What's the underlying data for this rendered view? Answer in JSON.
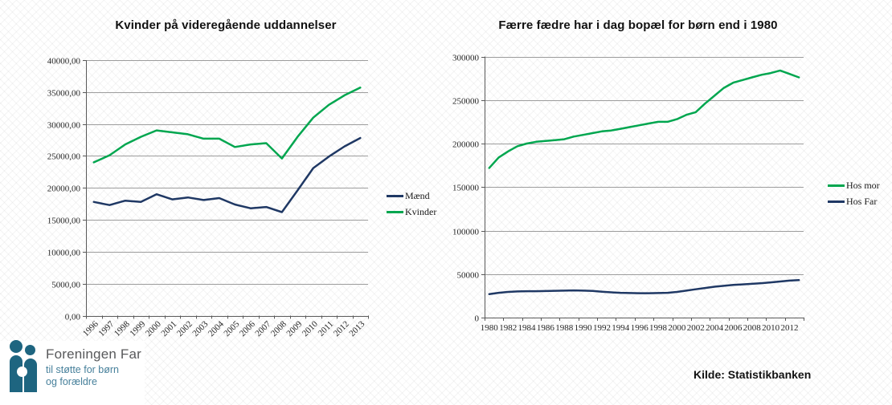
{
  "slide": {
    "background_color": "#FFFFFF"
  },
  "chart_data": [
    {
      "type": "line",
      "title": "Kvinder på videregående uddannelser",
      "categories": [
        "1996",
        "1997",
        "1998",
        "1999",
        "2000",
        "2001",
        "2002",
        "2003",
        "2004",
        "2005",
        "2006",
        "2007",
        "2008",
        "2009",
        "2010",
        "2011",
        "2012",
        "2013"
      ],
      "series": [
        {
          "name": "Mænd",
          "color": "#1F3864",
          "values": [
            17800,
            17300,
            18000,
            17800,
            19000,
            18200,
            18500,
            18100,
            18400,
            17400,
            16800,
            17000,
            16200,
            19600,
            23100,
            24900,
            26500,
            27800
          ]
        },
        {
          "name": "Kvinder",
          "color": "#00A64F",
          "values": [
            24000,
            25100,
            26800,
            28000,
            29000,
            28700,
            28400,
            27700,
            27700,
            26400,
            26800,
            27000,
            24600,
            28000,
            31000,
            33000,
            34500,
            35700
          ]
        }
      ],
      "ylim": [
        0,
        40000
      ],
      "ytick_step": 5000,
      "ytick_suffix": ",00",
      "xlabel": "",
      "ylabel": "",
      "grid": true,
      "legend_position": "right",
      "x_labels_rotated": true
    },
    {
      "type": "line",
      "title": "Færre fædre har i dag bopæl for børn end i 1980",
      "categories": [
        "1980",
        "1981",
        "1982",
        "1983",
        "1984",
        "1985",
        "1986",
        "1987",
        "1988",
        "1989",
        "1990",
        "1991",
        "1992",
        "1993",
        "1994",
        "1995",
        "1996",
        "1997",
        "1998",
        "1999",
        "2000",
        "2001",
        "2002",
        "2003",
        "2004",
        "2005",
        "2006",
        "2007",
        "2008",
        "2009",
        "2010",
        "2011",
        "2012",
        "2013"
      ],
      "series": [
        {
          "name": "Hos mor",
          "color": "#00A64F",
          "values": [
            172000,
            184000,
            191000,
            197000,
            200000,
            202000,
            203000,
            204000,
            205000,
            208000,
            210000,
            212000,
            214000,
            215000,
            217000,
            219000,
            221000,
            223000,
            225000,
            225000,
            228000,
            233000,
            236000,
            246000,
            255000,
            264000,
            270000,
            273000,
            276000,
            279000,
            281000,
            284000,
            280000,
            276000
          ]
        },
        {
          "name": "Hos Far",
          "color": "#1F3864",
          "values": [
            27000,
            28500,
            29500,
            30000,
            30300,
            30300,
            30500,
            30800,
            31000,
            31200,
            31000,
            30700,
            29800,
            29000,
            28500,
            28200,
            28000,
            28000,
            28200,
            28500,
            29500,
            31000,
            32500,
            34000,
            35500,
            36500,
            37500,
            38200,
            38800,
            39500,
            40500,
            41500,
            42500,
            43000
          ]
        }
      ],
      "ylim": [
        0,
        300000
      ],
      "ytick_step": 50000,
      "ytick_suffix": "",
      "xlabel": "",
      "ylabel": "",
      "grid": true,
      "legend_position": "right",
      "x_labels_rotated": false,
      "x_label_every": 2
    }
  ],
  "logo": {
    "name": "Foreningen Far",
    "tagline_line1": "til støtte for børn",
    "tagline_line2": "og forældre",
    "icon": "adult-and-child-figures",
    "icon_color": "#1E6580",
    "name_color": "#58595B",
    "tagline_color": "#47809B"
  },
  "footer": {
    "source_label": "Kilde: Statistikbanken"
  }
}
